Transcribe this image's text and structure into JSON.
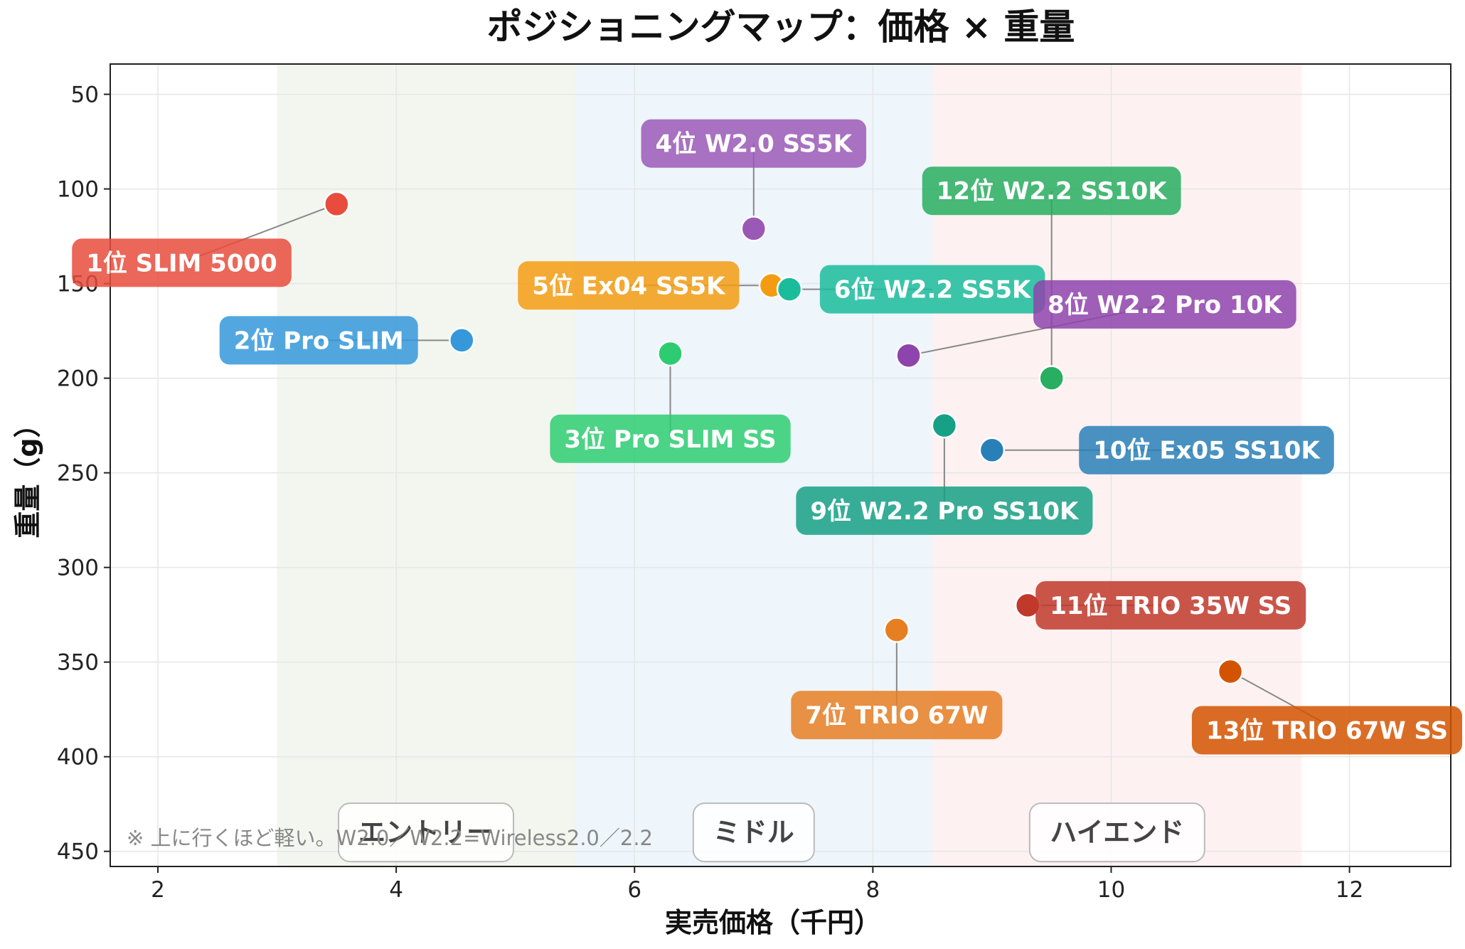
{
  "chart_data": {
    "type": "scatter",
    "title": "ポジショニングマップ：価格 × 重量",
    "xlabel": "実売価格（千円）",
    "ylabel": "重量（g）",
    "xlim": [
      1.6,
      12.85
    ],
    "ylim": [
      34,
      458
    ],
    "y_inverted": true,
    "grid": true,
    "x_ticks": [
      2,
      4,
      6,
      8,
      10,
      12
    ],
    "y_ticks": [
      50,
      100,
      150,
      200,
      250,
      300,
      350,
      400,
      450
    ],
    "zones": [
      {
        "label": "エントリー",
        "x_range": [
          3.0,
          5.5
        ],
        "color": "#f3f6ef"
      },
      {
        "label": "ミドル",
        "x_range": [
          5.5,
          8.5
        ],
        "color": "#eef5fb"
      },
      {
        "label": "ハイエンド",
        "x_range": [
          8.5,
          11.6
        ],
        "color": "#fdf1f1"
      }
    ],
    "points": [
      {
        "label": "1位 SLIM 5000",
        "x": 3.5,
        "y": 108,
        "color": "#e74c3c",
        "label_x": 2.2,
        "label_y": 139
      },
      {
        "label": "2位 Pro SLIM",
        "x": 4.55,
        "y": 180,
        "color": "#3498db",
        "label_x": 3.35,
        "label_y": 180
      },
      {
        "label": "3位 Pro SLIM SS",
        "x": 6.3,
        "y": 187,
        "color": "#2ecc71",
        "label_x": 6.3,
        "label_y": 232
      },
      {
        "label": "4位 W2.0 SS5K",
        "x": 7.0,
        "y": 121,
        "color": "#9b59b6",
        "label_x": 7.0,
        "label_y": 76
      },
      {
        "label": "5位 Ex04 SS5K",
        "x": 7.15,
        "y": 151,
        "color": "#f39c12",
        "label_x": 5.95,
        "label_y": 151
      },
      {
        "label": "6位 W2.2 SS5K",
        "x": 7.3,
        "y": 153,
        "color": "#1abc9c",
        "label_x": 8.5,
        "label_y": 153
      },
      {
        "label": "7位 TRIO 67W",
        "x": 8.2,
        "y": 333,
        "color": "#e67e22",
        "label_x": 8.2,
        "label_y": 378
      },
      {
        "label": "8位 W2.2 Pro 10K",
        "x": 8.3,
        "y": 188,
        "color": "#8e44ad",
        "label_x": 10.45,
        "label_y": 161
      },
      {
        "label": "9位 W2.2 Pro SS10K",
        "x": 8.6,
        "y": 225,
        "color": "#16a085",
        "label_x": 8.6,
        "label_y": 270
      },
      {
        "label": "10位 Ex05 SS10K",
        "x": 9.0,
        "y": 238,
        "color": "#2980b9",
        "label_x": 10.8,
        "label_y": 238
      },
      {
        "label": "11位 TRIO 35W SS",
        "x": 9.3,
        "y": 320,
        "color": "#c0392b",
        "label_x": 10.5,
        "label_y": 320
      },
      {
        "label": "12位 W2.2 SS10K",
        "x": 9.5,
        "y": 200,
        "color": "#27ae60",
        "label_x": 9.5,
        "label_y": 101
      },
      {
        "label": "13位 TRIO 67W SS",
        "x": 11.0,
        "y": 355,
        "color": "#d35400",
        "label_x": 11.9,
        "label_y": 386
      }
    ],
    "annotations": [
      "※ 上に行くほど軽い。W2.0／W2.2=Wireless2.0／2.2"
    ]
  }
}
